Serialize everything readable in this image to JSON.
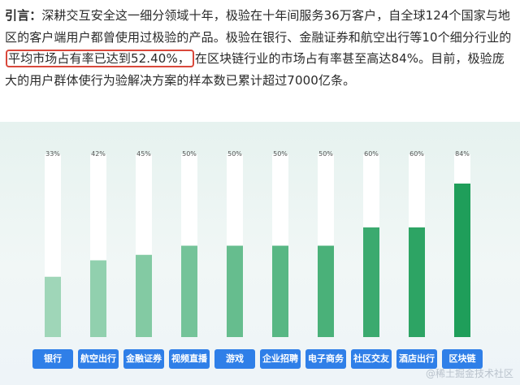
{
  "intro": {
    "lead": "引言：",
    "part1": "深耕交互安全这一细分领域十年，极验在十年间服务36万客户，自全球124个国家与地区的客户端用户都曾使用过极验的产品。极验在银行、金融证券和航空出行等10个细分行业的",
    "highlight": "平均市场占有率已达到52.40%，",
    "part2": "在区块链行业的市场占有率甚至高达84%。目前，极验庞大的用户群体使行为验解决方案的样本数已累计超过7000亿条。"
  },
  "colors": {
    "highlight_border": "#d9483b",
    "button": "#2f7fe8",
    "bar_track": "#ffffff",
    "bar_light": "#9fd6b8",
    "bar_dark": "#1f9e5a"
  },
  "chart_data": {
    "type": "bar",
    "categories": [
      "银行",
      "航空出行",
      "金融证券",
      "视频直播",
      "游戏",
      "企业招聘",
      "电子商务",
      "社区交友",
      "酒店出行",
      "区块链"
    ],
    "values": [
      33,
      42,
      45,
      50,
      50,
      50,
      50,
      60,
      60,
      84
    ],
    "value_labels": [
      "33%",
      "42%",
      "45%",
      "50%",
      "50%",
      "50%",
      "50%",
      "60%",
      "60%",
      "84%"
    ],
    "ylim": [
      0,
      100
    ],
    "grid": false,
    "legend": "none"
  },
  "watermark": "@稀土掘金技术社区"
}
